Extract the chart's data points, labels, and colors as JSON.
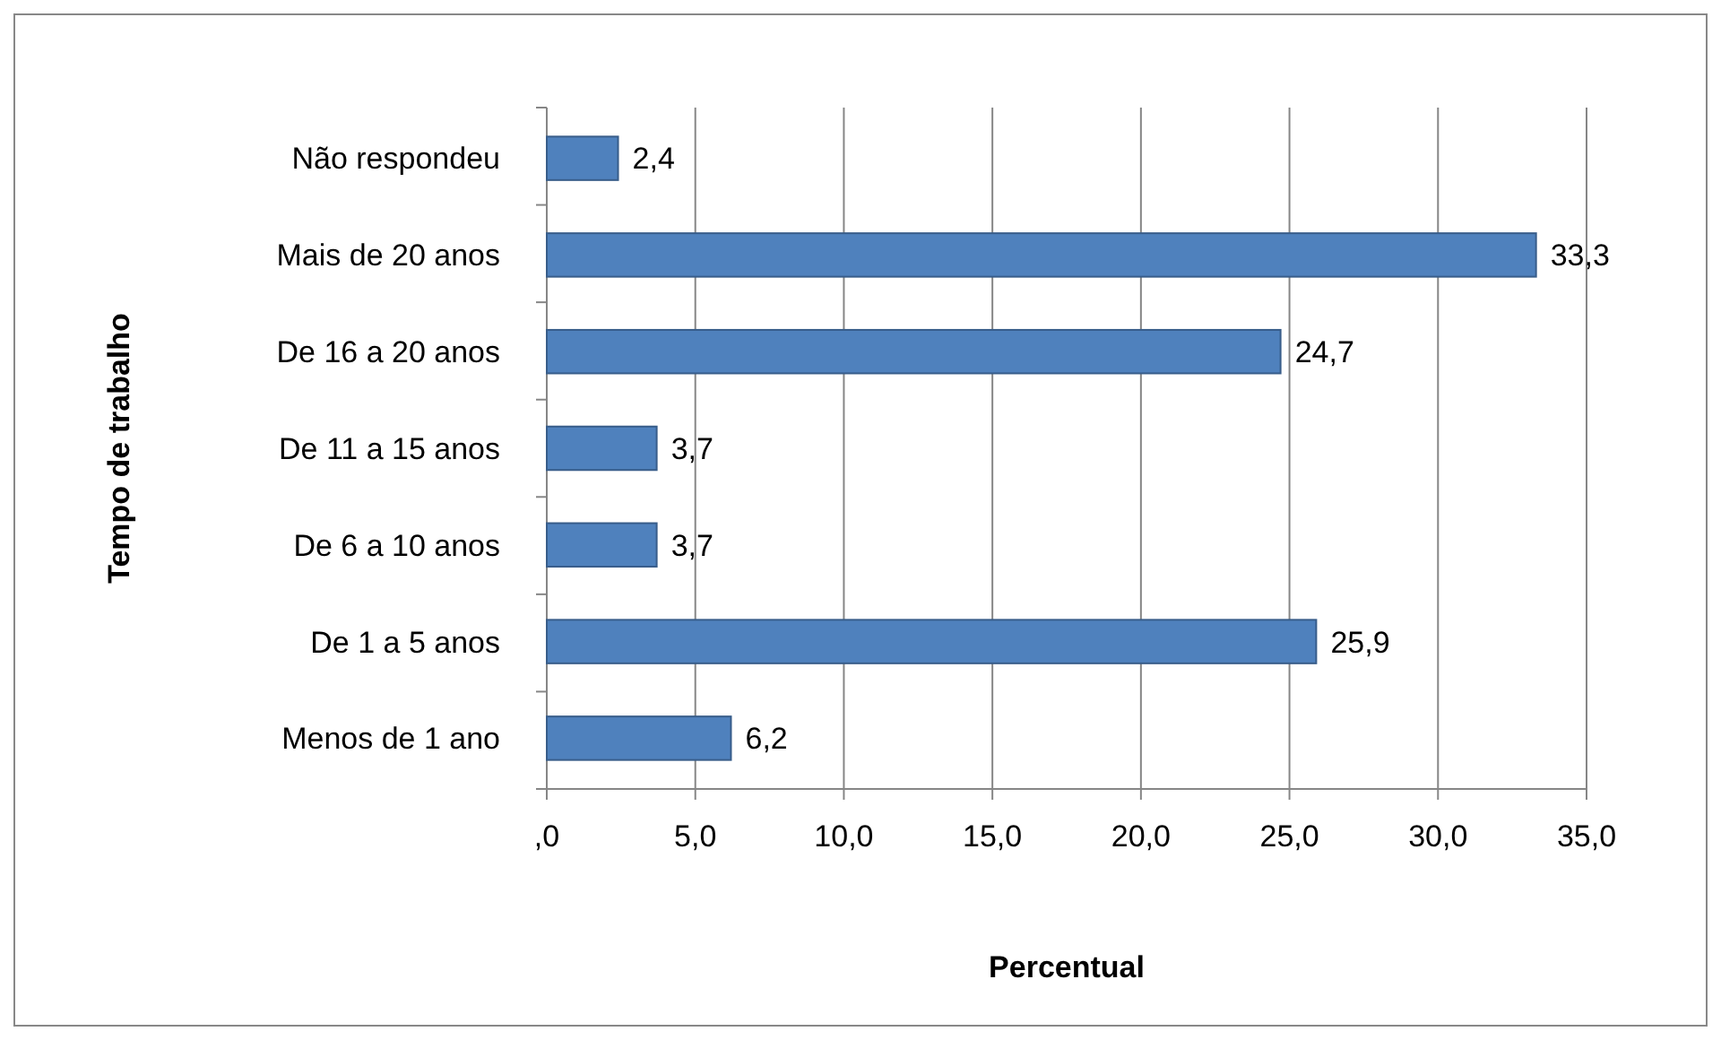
{
  "chart_data": {
    "type": "bar",
    "orientation": "horizontal",
    "xlabel": "Percentual",
    "ylabel": "Tempo de trabalho",
    "categories": [
      "Não respondeu",
      "Mais de 20 anos",
      "De 16 a 20 anos",
      "De 11 a 15 anos",
      "De 6 a 10 anos",
      "De 1 a 5 anos",
      "Menos de 1 ano"
    ],
    "values": [
      2.4,
      33.3,
      24.7,
      3.7,
      3.7,
      25.9,
      6.2
    ],
    "value_labels": [
      "2,4",
      "33,3",
      "24,7",
      "3,7",
      "3,7",
      "25,9",
      "6,2"
    ],
    "color": "#4f81bd",
    "xlim": [
      0,
      35
    ],
    "xticks": [
      {
        "value": 0,
        "label": ",0"
      },
      {
        "value": 5,
        "label": "5,0"
      },
      {
        "value": 10,
        "label": "10,0"
      },
      {
        "value": 15,
        "label": "15,0"
      },
      {
        "value": 20,
        "label": "20,0"
      },
      {
        "value": 25,
        "label": "25,0"
      },
      {
        "value": 30,
        "label": "30,0"
      },
      {
        "value": 35,
        "label": "35,0"
      }
    ],
    "grid": "x"
  }
}
